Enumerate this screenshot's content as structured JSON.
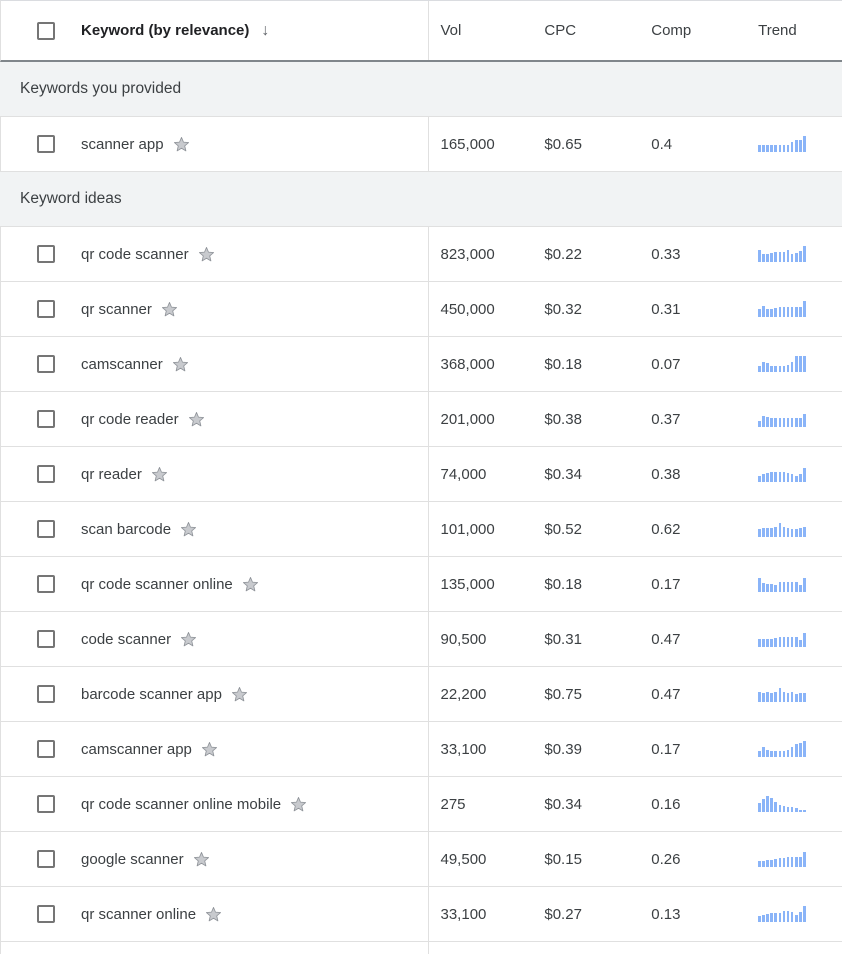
{
  "colors": {
    "trend_bar": "#8ab4f8",
    "header_underline": "#80868b",
    "row_border": "#e0e0e0",
    "section_bg": "#f1f3f4",
    "text_primary": "#202124",
    "text_secondary": "#3c4043"
  },
  "table": {
    "columns": {
      "keyword": "Keyword (by relevance)",
      "sort_icon": "↓",
      "vol": "Vol",
      "cpc": "CPC",
      "comp": "Comp",
      "trend": "Trend"
    },
    "sections": [
      {
        "label": "Keywords you provided",
        "rows": [
          {
            "keyword": "scanner app",
            "vol": "165,000",
            "cpc": "$0.65",
            "comp": "0.4",
            "trend": [
              0.45,
              0.45,
              0.45,
              0.45,
              0.45,
              0.45,
              0.45,
              0.45,
              0.65,
              0.75,
              0.75,
              1.0
            ]
          }
        ]
      },
      {
        "label": "Keyword ideas",
        "rows": [
          {
            "keyword": "qr code scanner",
            "vol": "823,000",
            "cpc": "$0.22",
            "comp": "0.33",
            "trend": [
              0.75,
              0.5,
              0.5,
              0.55,
              0.6,
              0.6,
              0.65,
              0.75,
              0.5,
              0.55,
              0.7,
              1.0
            ]
          },
          {
            "keyword": "qr scanner",
            "vol": "450,000",
            "cpc": "$0.32",
            "comp": "0.31",
            "trend": [
              0.5,
              0.7,
              0.5,
              0.5,
              0.55,
              0.6,
              0.6,
              0.6,
              0.6,
              0.6,
              0.65,
              1.0
            ]
          },
          {
            "keyword": "camscanner",
            "vol": "368,000",
            "cpc": "$0.18",
            "comp": "0.07",
            "trend": [
              0.35,
              0.65,
              0.55,
              0.4,
              0.4,
              0.4,
              0.4,
              0.45,
              0.65,
              1.0,
              1.0,
              1.0
            ]
          },
          {
            "keyword": "qr code reader",
            "vol": "201,000",
            "cpc": "$0.38",
            "comp": "0.37",
            "trend": [
              0.4,
              0.7,
              0.6,
              0.55,
              0.55,
              0.55,
              0.55,
              0.55,
              0.55,
              0.55,
              0.55,
              0.8
            ]
          },
          {
            "keyword": "qr reader",
            "vol": "74,000",
            "cpc": "$0.34",
            "comp": "0.38",
            "trend": [
              0.35,
              0.5,
              0.55,
              0.6,
              0.6,
              0.6,
              0.6,
              0.55,
              0.5,
              0.35,
              0.5,
              0.85
            ]
          },
          {
            "keyword": "scan barcode",
            "vol": "101,000",
            "cpc": "$0.52",
            "comp": "0.62",
            "trend": [
              0.5,
              0.55,
              0.55,
              0.55,
              0.6,
              0.9,
              0.65,
              0.55,
              0.5,
              0.5,
              0.55,
              0.6
            ]
          },
          {
            "keyword": "qr code scanner online",
            "vol": "135,000",
            "cpc": "$0.18",
            "comp": "0.17",
            "trend": [
              0.85,
              0.55,
              0.5,
              0.5,
              0.45,
              0.6,
              0.65,
              0.65,
              0.65,
              0.6,
              0.45,
              0.9
            ]
          },
          {
            "keyword": "code scanner",
            "vol": "90,500",
            "cpc": "$0.31",
            "comp": "0.47",
            "trend": [
              0.5,
              0.5,
              0.5,
              0.5,
              0.55,
              0.65,
              0.65,
              0.65,
              0.65,
              0.6,
              0.45,
              0.85
            ]
          },
          {
            "keyword": "barcode scanner app",
            "vol": "22,200",
            "cpc": "$0.75",
            "comp": "0.47",
            "trend": [
              0.65,
              0.55,
              0.6,
              0.55,
              0.6,
              0.9,
              0.6,
              0.55,
              0.6,
              0.5,
              0.55,
              0.55
            ]
          },
          {
            "keyword": "camscanner app",
            "vol": "33,100",
            "cpc": "$0.39",
            "comp": "0.17",
            "trend": [
              0.35,
              0.6,
              0.45,
              0.35,
              0.35,
              0.35,
              0.4,
              0.45,
              0.6,
              0.8,
              0.85,
              1.0
            ]
          },
          {
            "keyword": "qr code scanner online mobile",
            "vol": "275",
            "cpc": "$0.34",
            "comp": "0.16",
            "trend": [
              0.55,
              0.8,
              1.0,
              0.85,
              0.6,
              0.45,
              0.35,
              0.3,
              0.3,
              0.25,
              0.15,
              0.1
            ]
          },
          {
            "keyword": "google scanner",
            "vol": "49,500",
            "cpc": "$0.15",
            "comp": "0.26",
            "trend": [
              0.35,
              0.4,
              0.45,
              0.45,
              0.5,
              0.55,
              0.55,
              0.6,
              0.6,
              0.6,
              0.6,
              0.95
            ]
          },
          {
            "keyword": "qr scanner online",
            "vol": "33,100",
            "cpc": "$0.27",
            "comp": "0.13",
            "trend": [
              0.4,
              0.45,
              0.5,
              0.55,
              0.55,
              0.55,
              0.7,
              0.7,
              0.6,
              0.45,
              0.6,
              1.0
            ]
          }
        ]
      }
    ]
  }
}
